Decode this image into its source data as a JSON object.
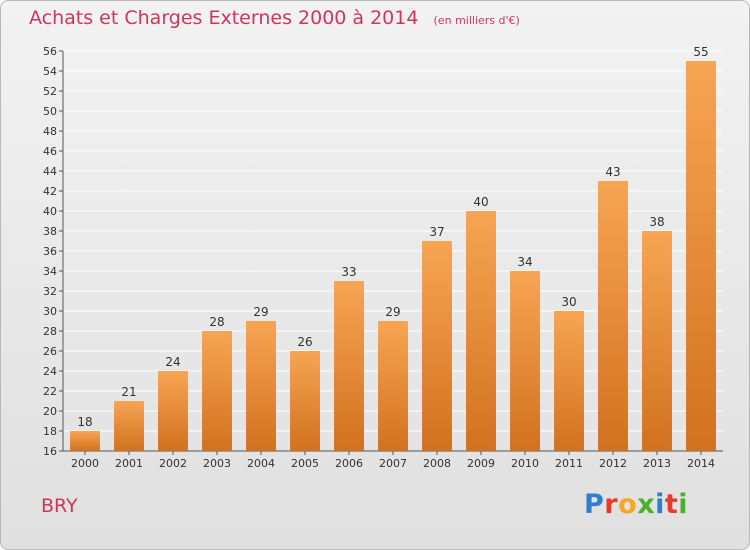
{
  "title": "Achats et Charges Externes 2000 à 2014",
  "unit_note": "(en milliers d'€)",
  "commune": "BRY",
  "logo": {
    "text": "Proxiti",
    "letters": [
      {
        "ch": "P",
        "color": "#2a7fd0"
      },
      {
        "ch": "r",
        "color": "#e8392a"
      },
      {
        "ch": "o",
        "color": "#f5a623"
      },
      {
        "ch": "x",
        "color": "#4caf30"
      },
      {
        "ch": "i",
        "color": "#2a7fd0"
      },
      {
        "ch": "t",
        "color": "#e8392a"
      },
      {
        "ch": "i",
        "color": "#4caf30"
      }
    ]
  },
  "colors": {
    "bar_top": "#f7a553",
    "bar_bottom": "#d2711f",
    "title": "#d0365a",
    "grid": "#ffffff"
  },
  "chart_data": {
    "type": "bar",
    "categories": [
      "2000",
      "2001",
      "2002",
      "2003",
      "2004",
      "2005",
      "2006",
      "2007",
      "2008",
      "2009",
      "2010",
      "2011",
      "2012",
      "2013",
      "2014"
    ],
    "values": [
      18,
      21,
      24,
      28,
      29,
      26,
      33,
      29,
      37,
      40,
      34,
      30,
      43,
      38,
      55
    ],
    "ylim": [
      16,
      56
    ],
    "ytick_step": 2,
    "grid": true,
    "data_labels": true
  }
}
